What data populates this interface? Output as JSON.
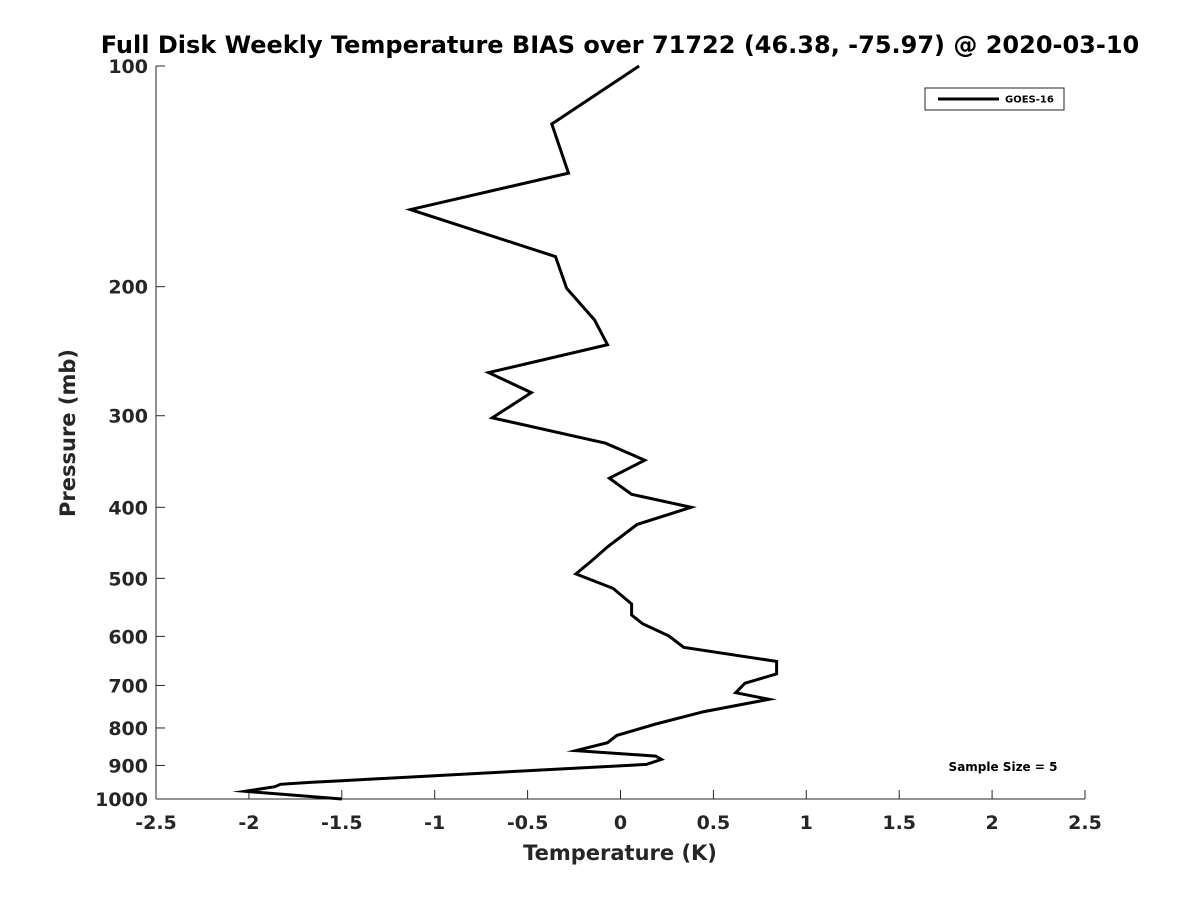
{
  "chart_data": {
    "type": "line",
    "title": "Full Disk Weekly Temperature BIAS over 71722 (46.38, -75.97) @ 2020-03-10",
    "xlabel": "Temperature (K)",
    "ylabel": "Pressure (mb)",
    "xlim": [
      -2.5,
      2.5
    ],
    "ylim": [
      100,
      1000
    ],
    "y_scale": "log",
    "y_reversed": true,
    "grid": false,
    "legend_position": "top-right",
    "x_ticks": [
      "-2.5",
      "-2",
      "-1.5",
      "-1",
      "-0.5",
      "0",
      "0.5",
      "1",
      "1.5",
      "2",
      "2.5"
    ],
    "x_tick_values": [
      -2.5,
      -2,
      -1.5,
      -1,
      -0.5,
      0,
      0.5,
      1,
      1.5,
      2,
      2.5
    ],
    "y_ticks": [
      "100",
      "200",
      "300",
      "400",
      "500",
      "600",
      "700",
      "800",
      "900",
      "1000"
    ],
    "y_tick_values": [
      100,
      200,
      300,
      400,
      500,
      600,
      700,
      800,
      900,
      1000
    ],
    "annotation": "Sample Size = 5",
    "series": [
      {
        "name": "GOES-16",
        "color": "#000000",
        "points": [
          [
            0.1,
            100
          ],
          [
            -0.37,
            120
          ],
          [
            -0.28,
            140
          ],
          [
            -1.13,
            157
          ],
          [
            -0.35,
            182
          ],
          [
            -0.29,
            201
          ],
          [
            -0.14,
            222
          ],
          [
            -0.07,
            240
          ],
          [
            -0.71,
            262
          ],
          [
            -0.48,
            279
          ],
          [
            -0.69,
            302
          ],
          [
            -0.08,
            327
          ],
          [
            0.13,
            345
          ],
          [
            -0.06,
            365
          ],
          [
            0.06,
            384
          ],
          [
            0.38,
            400
          ],
          [
            0.09,
            422
          ],
          [
            -0.07,
            453
          ],
          [
            -0.15,
            472
          ],
          [
            -0.24,
            493
          ],
          [
            -0.04,
            516
          ],
          [
            0.06,
            542
          ],
          [
            0.06,
            561
          ],
          [
            0.12,
            577
          ],
          [
            0.26,
            599
          ],
          [
            0.34,
            621
          ],
          [
            0.84,
            649
          ],
          [
            0.84,
            675
          ],
          [
            0.67,
            695
          ],
          [
            0.62,
            716
          ],
          [
            0.8,
            731
          ],
          [
            0.45,
            760
          ],
          [
            0.19,
            790
          ],
          [
            -0.02,
            819
          ],
          [
            -0.07,
            838
          ],
          [
            -0.24,
            859
          ],
          [
            0.19,
            874
          ],
          [
            0.22,
            883
          ],
          [
            0.14,
            897
          ],
          [
            -1.5,
            944
          ],
          [
            -1.66,
            949
          ],
          [
            -1.83,
            955
          ],
          [
            -1.86,
            962
          ],
          [
            -2.02,
            976
          ],
          [
            -1.5,
            1000
          ]
        ]
      }
    ]
  }
}
